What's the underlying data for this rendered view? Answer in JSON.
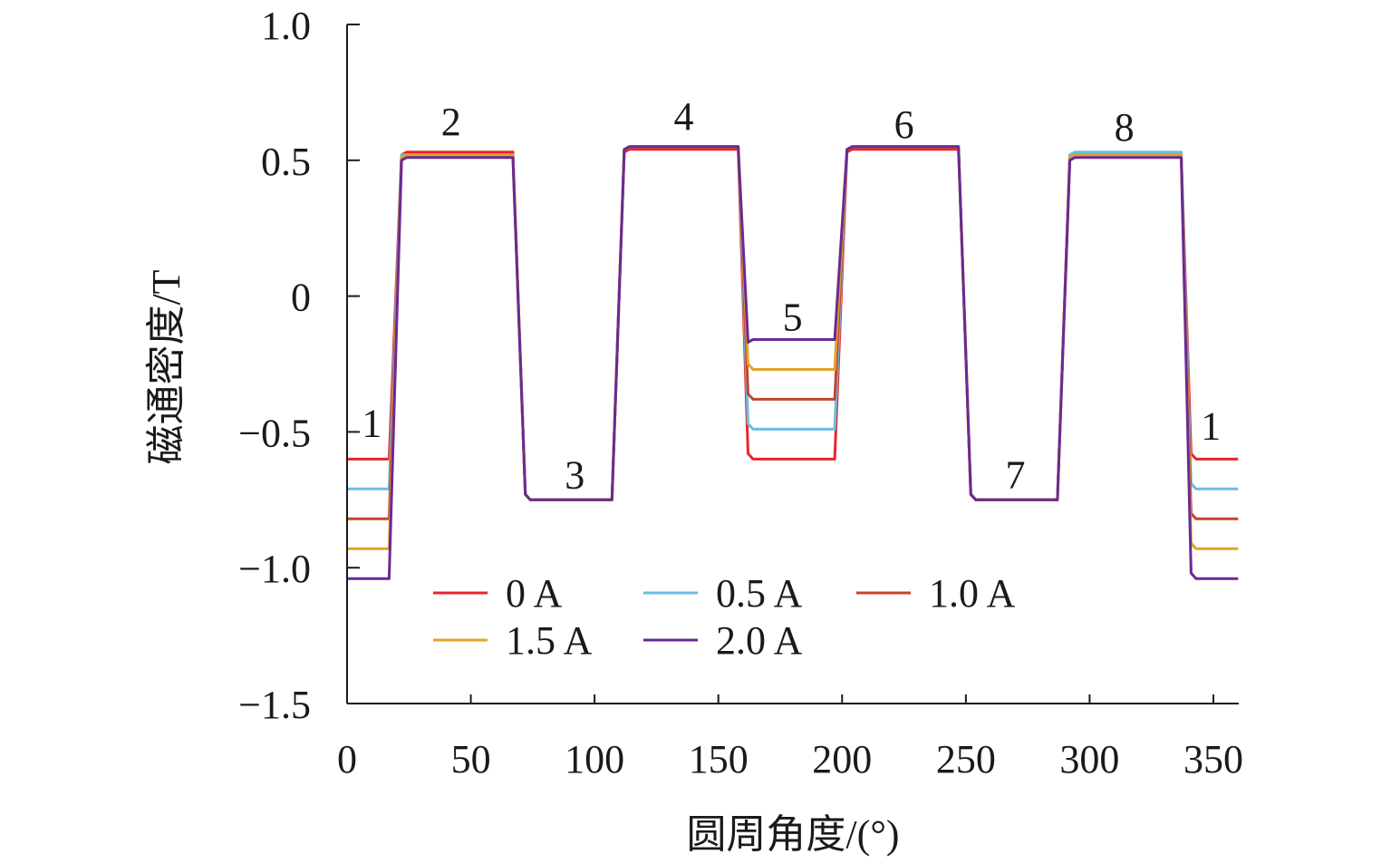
{
  "chart_data": {
    "type": "line",
    "xlabel": "圆周角度/(°)",
    "ylabel": "磁通密度/T",
    "xlim": [
      0,
      360
    ],
    "ylim": [
      -1.5,
      1.0
    ],
    "xticks": [
      0,
      50,
      100,
      150,
      200,
      250,
      300,
      350
    ],
    "xtick_labels": [
      "0",
      "50",
      "100",
      "150",
      "200",
      "250",
      "300",
      "350"
    ],
    "yticks": [
      1.0,
      0.5,
      0,
      -0.5,
      -1.0,
      -1.5
    ],
    "ytick_labels": [
      "1.0",
      "0.5",
      "0",
      "−0.5",
      "−1.0",
      "−1.5"
    ],
    "grid": false,
    "legend_placement": "bottom-center",
    "region_labels": [
      {
        "text": "1",
        "x": 10,
        "y": -0.47
      },
      {
        "text": "2",
        "x": 42,
        "y": 0.64
      },
      {
        "text": "3",
        "x": 92,
        "y": -0.66
      },
      {
        "text": "4",
        "x": 136,
        "y": 0.66
      },
      {
        "text": "5",
        "x": 180,
        "y": -0.08
      },
      {
        "text": "6",
        "x": 225,
        "y": 0.63
      },
      {
        "text": "7",
        "x": 270,
        "y": -0.66
      },
      {
        "text": "8",
        "x": 314,
        "y": 0.62
      },
      {
        "text": "1",
        "x": 349,
        "y": -0.48
      }
    ],
    "x_breakpoints": [
      0,
      16,
      17,
      22,
      24,
      66,
      67,
      72,
      74,
      106,
      107,
      112,
      114,
      157,
      158,
      162,
      164,
      196,
      197,
      202,
      204,
      246,
      247,
      252,
      254,
      286,
      287,
      292,
      294,
      336,
      337,
      341,
      343,
      360
    ],
    "series": [
      {
        "name": "0 A",
        "color": "#e8262d",
        "values": [
          -0.6,
          -0.6,
          -0.6,
          0.52,
          0.53,
          0.53,
          0.53,
          -0.73,
          -0.75,
          -0.75,
          -0.75,
          0.53,
          0.54,
          0.54,
          0.54,
          -0.58,
          -0.6,
          -0.6,
          -0.6,
          0.53,
          0.54,
          0.54,
          0.54,
          -0.73,
          -0.75,
          -0.75,
          -0.75,
          0.52,
          0.52,
          0.52,
          0.52,
          -0.58,
          -0.6,
          -0.6
        ]
      },
      {
        "name": "0.5 A",
        "color": "#6bbde2",
        "values": [
          -0.71,
          -0.71,
          -0.71,
          0.52,
          0.52,
          0.52,
          0.52,
          -0.73,
          -0.75,
          -0.75,
          -0.75,
          0.54,
          0.55,
          0.55,
          0.55,
          -0.47,
          -0.49,
          -0.49,
          -0.49,
          0.54,
          0.55,
          0.55,
          0.55,
          -0.73,
          -0.75,
          -0.75,
          -0.75,
          0.52,
          0.53,
          0.53,
          0.53,
          -0.69,
          -0.71,
          -0.71
        ]
      },
      {
        "name": "1.0 A",
        "color": "#c4452a",
        "values": [
          -0.82,
          -0.82,
          -0.82,
          0.51,
          0.52,
          0.52,
          0.52,
          -0.73,
          -0.75,
          -0.75,
          -0.75,
          0.54,
          0.55,
          0.55,
          0.55,
          -0.36,
          -0.38,
          -0.38,
          -0.38,
          0.54,
          0.55,
          0.55,
          0.55,
          -0.73,
          -0.75,
          -0.75,
          -0.75,
          0.51,
          0.52,
          0.52,
          0.52,
          -0.8,
          -0.82,
          -0.82
        ]
      },
      {
        "name": "1.5 A",
        "color": "#e0a32a",
        "values": [
          -0.93,
          -0.93,
          -0.93,
          0.51,
          0.52,
          0.52,
          0.52,
          -0.73,
          -0.75,
          -0.75,
          -0.75,
          0.54,
          0.55,
          0.55,
          0.55,
          -0.25,
          -0.27,
          -0.27,
          -0.27,
          0.54,
          0.55,
          0.55,
          0.55,
          -0.73,
          -0.75,
          -0.75,
          -0.75,
          0.51,
          0.52,
          0.52,
          0.52,
          -0.91,
          -0.93,
          -0.93
        ]
      },
      {
        "name": "2.0 A",
        "color": "#6a2a93",
        "values": [
          -1.04,
          -1.04,
          -1.04,
          0.5,
          0.51,
          0.51,
          0.51,
          -0.73,
          -0.75,
          -0.75,
          -0.75,
          0.54,
          0.55,
          0.55,
          0.55,
          -0.17,
          -0.16,
          -0.16,
          -0.16,
          0.54,
          0.55,
          0.55,
          0.55,
          -0.73,
          -0.75,
          -0.75,
          -0.75,
          0.5,
          0.51,
          0.51,
          0.51,
          -1.02,
          -1.04,
          -1.04
        ]
      }
    ]
  }
}
